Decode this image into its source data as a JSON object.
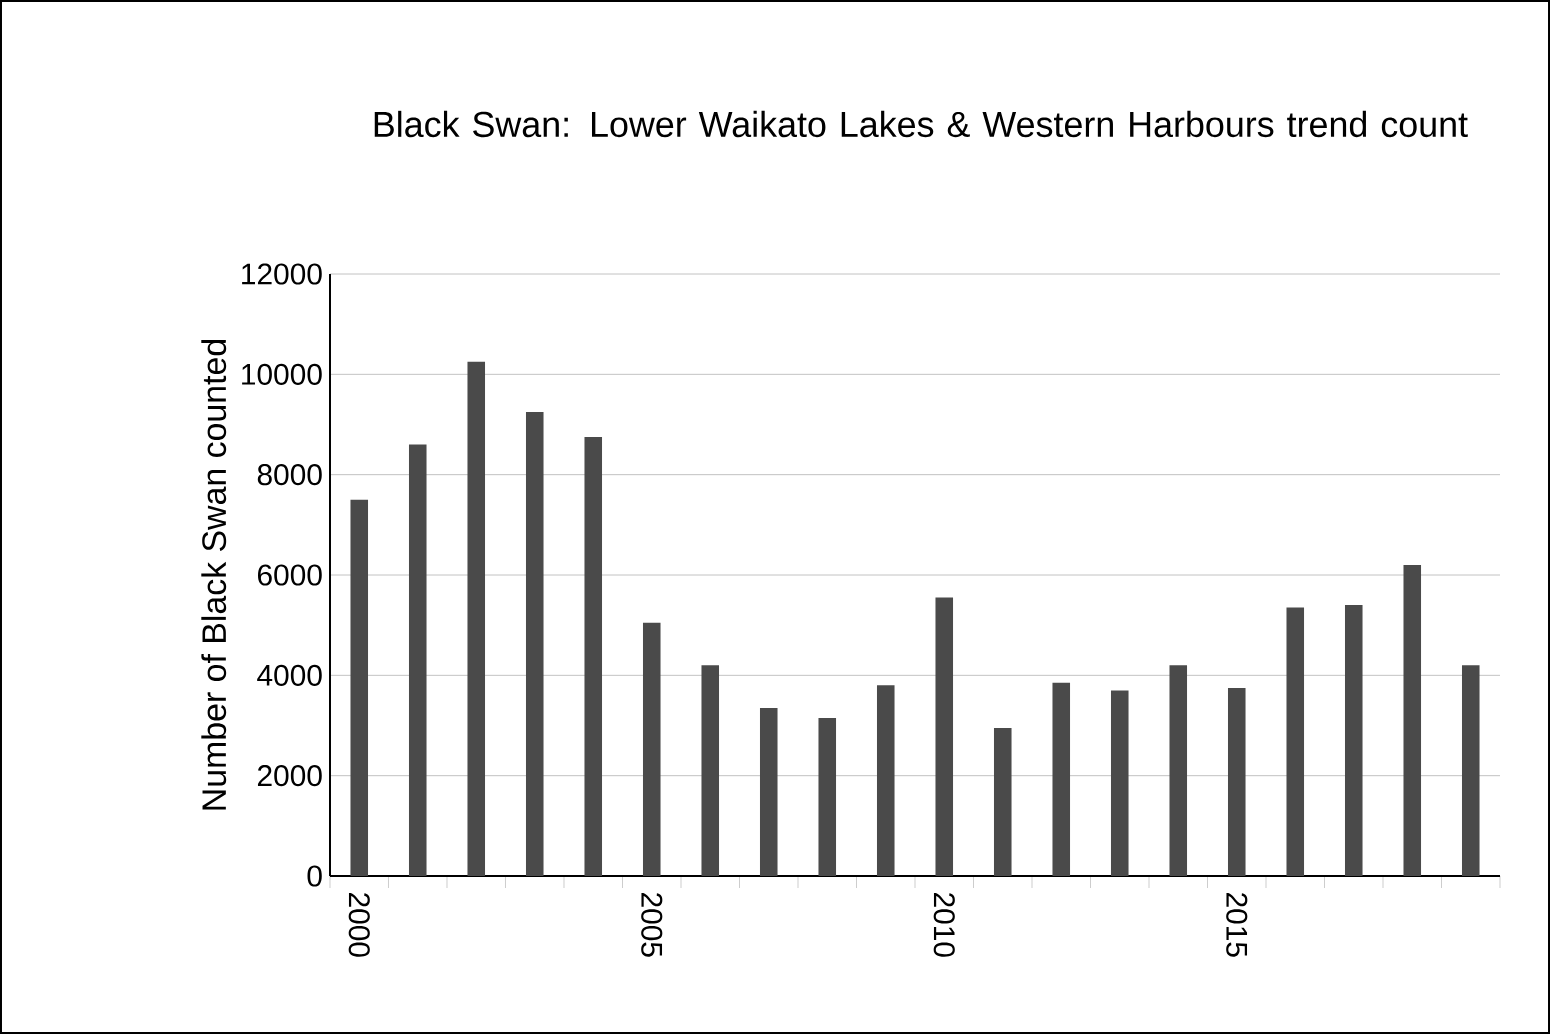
{
  "chart_data": {
    "type": "bar",
    "title": "Black Swan: Lower Waikato Lakes & Western Harbours trend count",
    "ylabel": "Number of Black Swan counted",
    "categories": [
      "2000",
      null,
      null,
      null,
      null,
      "2005",
      null,
      null,
      null,
      null,
      "2010",
      null,
      null,
      null,
      null,
      "2015",
      null,
      null,
      null,
      null
    ],
    "values": [
      7500,
      8600,
      10250,
      9250,
      8750,
      5050,
      4200,
      3350,
      3150,
      3800,
      5550,
      2950,
      3850,
      3700,
      4200,
      3750,
      5350,
      5400,
      6200,
      4200
    ],
    "color": "#4a4a4a",
    "ylim": [
      0,
      12000
    ],
    "yticks": [
      0,
      2000,
      4000,
      6000,
      8000,
      10000,
      12000
    ],
    "grid": "y"
  }
}
